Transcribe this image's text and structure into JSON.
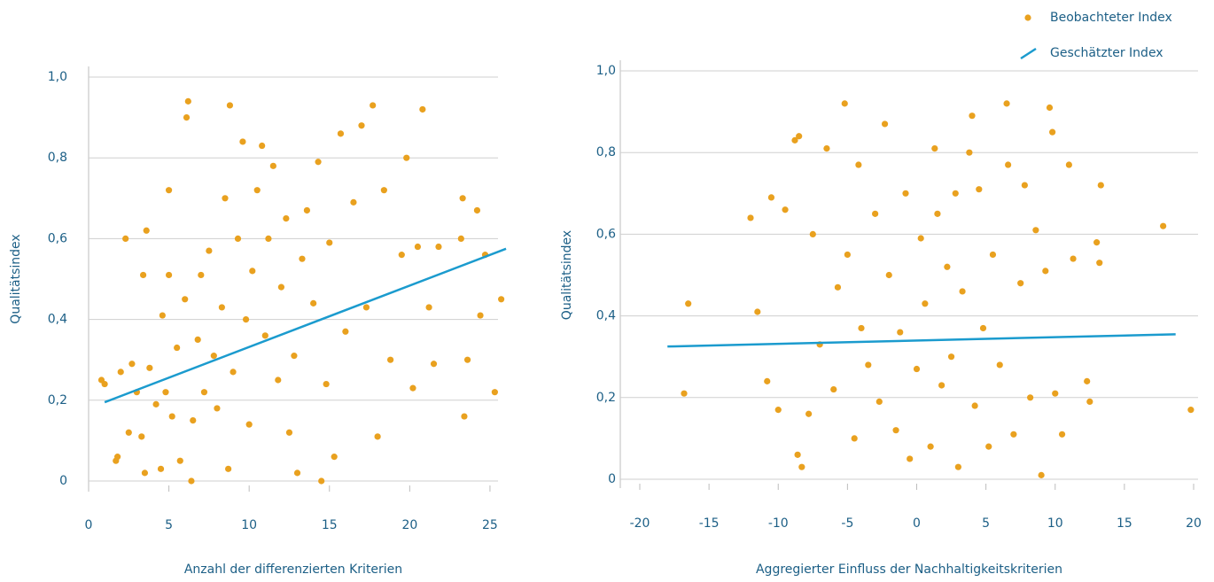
{
  "chart_data": [
    {
      "type": "scatter",
      "x_label": "Anzahl der differenzierten Kriterien",
      "y_label": "Qualitätsindex",
      "xlim": [
        0,
        25.5
      ],
      "ylim": [
        0,
        1
      ],
      "xticks": [
        0,
        5,
        10,
        15,
        20,
        25
      ],
      "yticks": [
        0,
        {
          "value": 0.2,
          "label": "0,2"
        },
        {
          "value": 0.4,
          "label": "0,4"
        },
        {
          "value": 0.6,
          "label": "0,6"
        },
        {
          "value": 0.8,
          "label": "0,8"
        },
        {
          "value": 1,
          "label": "1,0"
        }
      ],
      "grid": true,
      "legend": "top right",
      "series": [
        {
          "name": "Beobachteter Index",
          "color": "#e9a11f",
          "x": [
            0.8,
            1.0,
            1.7,
            1.8,
            2.0,
            2.3,
            2.5,
            2.7,
            3.0,
            3.3,
            3.4,
            3.5,
            3.6,
            3.8,
            4.2,
            4.5,
            4.6,
            4.8,
            5.0,
            5.0,
            5.2,
            5.5,
            5.7,
            6.0,
            6.1,
            6.2,
            6.4,
            6.5,
            6.8,
            7.0,
            7.2,
            7.5,
            7.8,
            8.0,
            8.3,
            8.5,
            8.7,
            8.8,
            9.0,
            9.3,
            9.6,
            9.8,
            10.0,
            10.2,
            10.5,
            10.8,
            11.0,
            11.2,
            11.5,
            11.8,
            12.0,
            12.3,
            12.5,
            12.8,
            13.0,
            13.3,
            13.6,
            14.0,
            14.3,
            14.5,
            14.8,
            15.0,
            15.3,
            15.7,
            16.0,
            16.5,
            17.0,
            17.3,
            17.7,
            18.0,
            18.4,
            18.8,
            19.5,
            19.8,
            20.2,
            20.5,
            20.8,
            21.2,
            21.5,
            21.8,
            23.2,
            23.3,
            23.4,
            23.6,
            24.2,
            24.4,
            24.7,
            25.3,
            25.7
          ],
          "values": [
            0.25,
            0.24,
            0.05,
            0.06,
            0.27,
            0.6,
            0.12,
            0.29,
            0.22,
            0.11,
            0.51,
            0.02,
            0.62,
            0.28,
            0.19,
            0.03,
            0.41,
            0.22,
            0.51,
            0.72,
            0.16,
            0.33,
            0.05,
            0.45,
            0.9,
            0.94,
            0.0,
            0.15,
            0.35,
            0.51,
            0.22,
            0.57,
            0.31,
            0.18,
            0.43,
            0.7,
            0.03,
            0.93,
            0.27,
            0.6,
            0.84,
            0.4,
            0.14,
            0.52,
            0.72,
            0.83,
            0.36,
            0.6,
            0.78,
            0.25,
            0.48,
            0.65,
            0.12,
            0.31,
            0.02,
            0.55,
            0.67,
            0.44,
            0.79,
            0.0,
            0.24,
            0.59,
            0.06,
            0.86,
            0.37,
            0.69,
            0.88,
            0.43,
            0.93,
            0.11,
            0.72,
            0.3,
            0.56,
            0.8,
            0.23,
            0.58,
            0.92,
            0.43,
            0.29,
            0.58,
            0.6,
            0.7,
            0.16,
            0.3,
            0.67,
            0.41,
            0.56,
            0.22,
            0.45
          ]
        },
        {
          "name": "Geschätzter Index",
          "color": "#1b9bce",
          "type": "line",
          "x": [
            1,
            26
          ],
          "values": [
            0.195,
            0.575
          ]
        }
      ]
    },
    {
      "type": "scatter",
      "x_label": "Aggregierter Einfluss der Nachhaltigkeitskriterien",
      "y_label": "Qualitätsindex",
      "xlim": [
        -20,
        20
      ],
      "ylim": [
        0,
        1
      ],
      "xticks": [
        -20,
        -15,
        -10,
        -5,
        0,
        5,
        10,
        15,
        20
      ],
      "yticks": [
        0,
        {
          "value": 0.2,
          "label": "0,2"
        },
        {
          "value": 0.4,
          "label": "0,4"
        },
        {
          "value": 0.6,
          "label": "0,6"
        },
        {
          "value": 0.8,
          "label": "0,8"
        },
        {
          "value": 1,
          "label": "1,0"
        }
      ],
      "grid": true,
      "series": [
        {
          "color": "#e9a11f",
          "x": [
            -16.5,
            -16.8,
            -12,
            -11.5,
            -10.8,
            -10.5,
            -10,
            -9.5,
            -8.8,
            -8.5,
            -8.6,
            -8.3,
            -7.8,
            -7.5,
            -7,
            -6.5,
            -6,
            -5.7,
            -5.2,
            -5,
            -4.5,
            -4.2,
            -4,
            -3.5,
            -3,
            -2.7,
            -2.3,
            -2,
            -1.5,
            -1.2,
            -0.8,
            -0.5,
            0,
            0.3,
            0.6,
            1.0,
            1.3,
            1.5,
            1.8,
            2.2,
            2.5,
            2.8,
            3.0,
            3.3,
            3.8,
            4.0,
            4.2,
            4.5,
            4.8,
            5.2,
            5.5,
            6.0,
            6.5,
            6.6,
            7,
            7.5,
            7.8,
            8.2,
            8.6,
            9.0,
            9.3,
            9.6,
            9.8,
            10,
            10.5,
            11,
            11.3,
            12.3,
            12.5,
            13,
            13.3,
            13.2,
            17.8,
            19.8
          ],
          "values": [
            0.43,
            0.21,
            0.64,
            0.41,
            0.24,
            0.69,
            0.17,
            0.66,
            0.83,
            0.84,
            0.06,
            0.03,
            0.16,
            0.6,
            0.33,
            0.81,
            0.22,
            0.47,
            0.92,
            0.55,
            0.1,
            0.77,
            0.37,
            0.28,
            0.65,
            0.19,
            0.87,
            0.5,
            0.12,
            0.36,
            0.7,
            0.05,
            0.27,
            0.59,
            0.43,
            0.08,
            0.81,
            0.65,
            0.23,
            0.52,
            0.3,
            0.7,
            0.03,
            0.46,
            0.8,
            0.89,
            0.18,
            0.71,
            0.37,
            0.08,
            0.55,
            0.28,
            0.92,
            0.77,
            0.11,
            0.48,
            0.72,
            0.2,
            0.61,
            0.01,
            0.51,
            0.91,
            0.85,
            0.21,
            0.11,
            0.77,
            0.54,
            0.24,
            0.19,
            0.58,
            0.72,
            0.53,
            0.62,
            0.17
          ]
        },
        {
          "color": "#1b9bce",
          "type": "line",
          "x": [
            -18,
            18.7
          ],
          "values": [
            0.325,
            0.355
          ]
        }
      ]
    }
  ]
}
